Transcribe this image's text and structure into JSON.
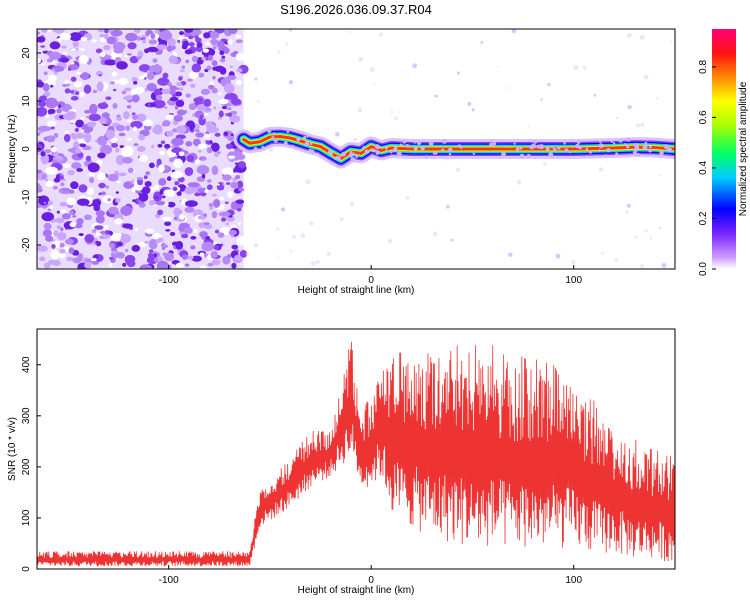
{
  "title": "S196.2026.036.09.37.R04",
  "chart_data": [
    {
      "type": "heatmap",
      "xlabel": "Height of straight line (km)",
      "ylabel": "Frequency (Hz)",
      "xlim": [
        -165,
        150
      ],
      "ylim": [
        -25,
        25
      ],
      "xticks": [
        -100,
        0,
        100
      ],
      "xtick_labels": [
        "-100",
        "0",
        "100"
      ],
      "yticks": [
        -20,
        -10,
        0,
        10,
        20
      ],
      "ytick_labels": [
        "-20",
        "-10",
        "0",
        "10",
        "20"
      ],
      "noise_region_x": [
        -165,
        -63
      ],
      "ridge": {
        "x": [
          -63,
          -60,
          -55,
          -50,
          -45,
          -40,
          -35,
          -30,
          -25,
          -20,
          -15,
          -10,
          -5,
          0,
          5,
          10,
          20,
          40,
          60,
          80,
          100,
          120,
          130,
          140,
          150
        ],
        "y": [
          2,
          1.2,
          1.5,
          2.5,
          2.6,
          2.3,
          1.7,
          1.0,
          0.5,
          -0.8,
          -2.0,
          -0.6,
          -0.9,
          0.5,
          -0.3,
          0.2,
          0.0,
          0.0,
          0.0,
          0.0,
          0.0,
          0.2,
          0.4,
          0.3,
          0.0
        ]
      },
      "colorbar": {
        "label": "Normalized spectral amplitude",
        "range": [
          0.0,
          0.95
        ],
        "ticks": [
          0.0,
          0.2,
          0.4,
          0.6,
          0.8
        ],
        "tick_labels": [
          "0.0",
          "0.2",
          "0.4",
          "0.6",
          "0.8"
        ],
        "colors": [
          "#ffffff",
          "#9933ff",
          "#0000ff",
          "#00ffff",
          "#00ff00",
          "#ffff00",
          "#ff9900",
          "#ff0000",
          "#ff0099"
        ]
      }
    },
    {
      "type": "line",
      "xlabel": "Height of straight line (km)",
      "ylabel": "SNR (10 * v/v)",
      "xlim": [
        -165,
        150
      ],
      "ylim": [
        0,
        470
      ],
      "xticks": [
        -100,
        0,
        100
      ],
      "xtick_labels": [
        "-100",
        "0",
        "100"
      ],
      "yticks": [
        0,
        100,
        200,
        300,
        400
      ],
      "ytick_labels": [
        "0",
        "100",
        "200",
        "300",
        "400"
      ],
      "color": "#ee3333",
      "envelope": {
        "x": [
          -165,
          -60,
          -55,
          -40,
          -30,
          -20,
          -10,
          -5,
          0,
          5,
          10,
          20,
          30,
          40,
          50,
          60,
          70,
          80,
          90,
          100,
          110,
          120,
          130,
          140,
          150
        ],
        "max": [
          35,
          35,
          160,
          220,
          270,
          280,
          460,
          300,
          350,
          400,
          420,
          430,
          440,
          450,
          440,
          440,
          420,
          420,
          400,
          380,
          330,
          290,
          260,
          240,
          220
        ],
        "min": [
          5,
          5,
          80,
          120,
          160,
          180,
          220,
          160,
          160,
          180,
          110,
          80,
          60,
          50,
          40,
          40,
          40,
          40,
          40,
          40,
          30,
          30,
          20,
          20,
          10
        ]
      }
    }
  ]
}
